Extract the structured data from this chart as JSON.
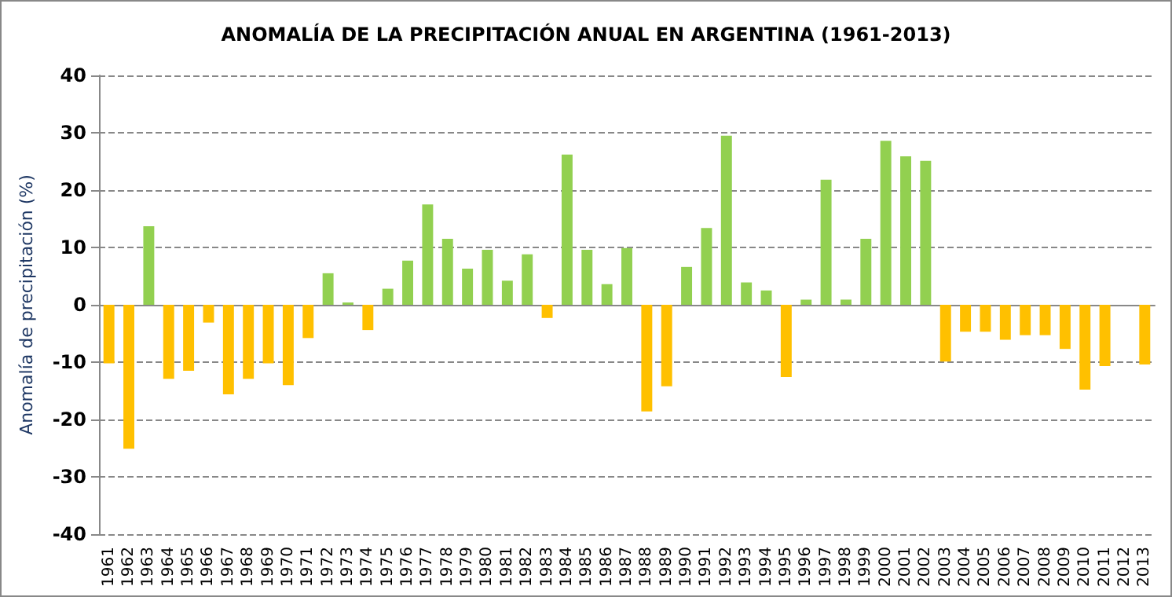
{
  "chart_data": {
    "type": "bar",
    "title": "ANOMALÍA DE LA PRECIPITACIÓN ANUAL EN ARGENTINA (1961-2013)",
    "ylabel": "Anomalía de precipitación (%)",
    "categories": [
      "1961",
      "1962",
      "1963",
      "1964",
      "1965",
      "1966",
      "1967",
      "1968",
      "1969",
      "1970",
      "1971",
      "1972",
      "1973",
      "1974",
      "1975",
      "1976",
      "1977",
      "1978",
      "1979",
      "1980",
      "1981",
      "1982",
      "1983",
      "1984",
      "1985",
      "1986",
      "1987",
      "1988",
      "1989",
      "1990",
      "1991",
      "1992",
      "1993",
      "1994",
      "1995",
      "1996",
      "1997",
      "1998",
      "1999",
      "2000",
      "2001",
      "2002",
      "2003",
      "2004",
      "2005",
      "2006",
      "2007",
      "2008",
      "2009",
      "2010",
      "2011",
      "2012",
      "2013"
    ],
    "values": [
      -10.2,
      -25.1,
      13.7,
      -12.9,
      -11.5,
      -3.1,
      -15.6,
      -12.9,
      -10.2,
      -14.0,
      -5.8,
      5.5,
      0.4,
      -4.4,
      2.8,
      7.7,
      17.5,
      11.5,
      6.3,
      9.6,
      4.2,
      8.8,
      -2.3,
      26.2,
      9.6,
      3.6,
      9.9,
      -18.6,
      -14.2,
      6.6,
      13.4,
      29.5,
      3.9,
      2.5,
      -12.6,
      0.9,
      21.8,
      0.9,
      11.5,
      28.6,
      25.9,
      25.1,
      -9.9,
      -4.7,
      -4.7,
      -6.1,
      -5.3,
      -5.3,
      -7.7,
      -14.8,
      -10.7,
      null,
      -10.4
    ],
    "colors": [
      "#ffc000",
      "#ffc000",
      "#92d050",
      "#ffc000",
      "#ffc000",
      "#ffc000",
      "#ffc000",
      "#ffc000",
      "#ffc000",
      "#ffc000",
      "#ffc000",
      "#92d050",
      "#92d050",
      "#ffc000",
      "#92d050",
      "#92d050",
      "#92d050",
      "#92d050",
      "#92d050",
      "#92d050",
      "#92d050",
      "#92d050",
      "#ffc000",
      "#92d050",
      "#92d050",
      "#92d050",
      "#92d050",
      "#ffc000",
      "#ffc000",
      "#92d050",
      "#92d050",
      "#92d050",
      "#92d050",
      "#92d050",
      "#ffc000",
      "#92d050",
      "#92d050",
      "#92d050",
      "#92d050",
      "#92d050",
      "#92d050",
      "#92d050",
      "#ffc000",
      "#ffc000",
      "#ffc000",
      "#ffc000",
      "#ffc000",
      "#ffc000",
      "#ffc000",
      "#ffc000",
      "#ffc000",
      "#ffc000",
      "#ffc000"
    ],
    "ylim": [
      -40,
      40
    ],
    "yticks": [
      -40,
      -30,
      -20,
      -10,
      0,
      10,
      20,
      30,
      40
    ],
    "grid": "y"
  }
}
